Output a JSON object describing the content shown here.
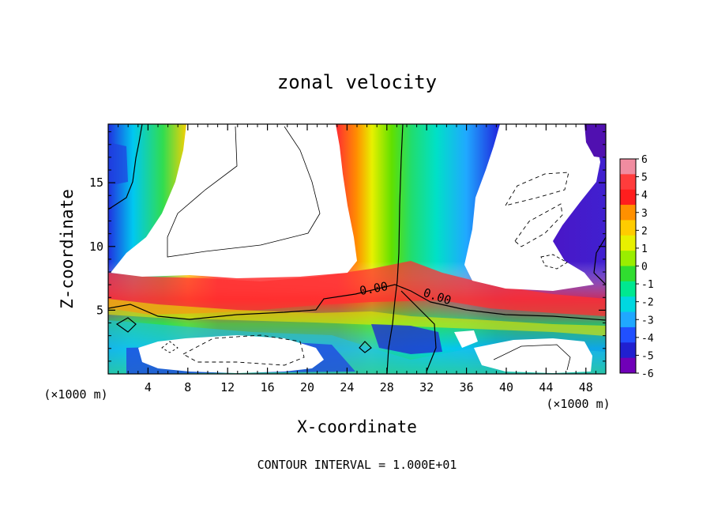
{
  "chart_data": {
    "type": "heatmap",
    "title": "zonal velocity",
    "xlabel": "X-coordinate",
    "ylabel": "Z-coordinate",
    "x_unit_left": "(×1000 m)",
    "x_unit_right": "(×1000 m)",
    "footer": "CONTOUR INTERVAL = 1.000E+01",
    "xlim": [
      0,
      50
    ],
    "ylim": [
      0,
      19.6
    ],
    "x_ticks": [
      4,
      8,
      12,
      16,
      20,
      24,
      28,
      32,
      36,
      40,
      44,
      48
    ],
    "y_ticks": [
      5,
      10,
      15
    ],
    "colorbar": {
      "min": -6,
      "max": 6,
      "ticks": [
        "6",
        "5",
        "4",
        "3",
        "2",
        "1",
        "0",
        "-1",
        "-2",
        "-3",
        "-4",
        "-5",
        "-6"
      ],
      "colors": [
        "#f08ca0",
        "#ff3c3c",
        "#ff1e1e",
        "#ff9000",
        "#ffcc00",
        "#e8f000",
        "#9aee00",
        "#30dd30",
        "#00e890",
        "#00d8e0",
        "#20a8ff",
        "#2050ff",
        "#2020d0",
        "#7000b8"
      ]
    },
    "contour_labels": [
      "0.00",
      "0.00"
    ],
    "clipped_regions": "white areas are values beyond the color scale (>6 or <-6)"
  }
}
